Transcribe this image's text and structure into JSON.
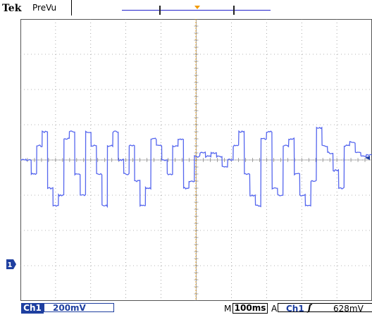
{
  "header": {
    "brand": "Tek",
    "mode": "PreVu"
  },
  "display": {
    "trace_color": "#5566ee",
    "grid_color": "#6f6f6f",
    "trigger_color": "#f29a00",
    "channel_marker": "1",
    "trace_levels_div": [
      0.0,
      0.4,
      -0.4,
      0.8,
      -0.8,
      1.3,
      -1.3
    ]
  },
  "status": {
    "channel": "Ch1",
    "volts_per_div": "200mV",
    "time_prefix": "M",
    "time_per_div": "100ms",
    "trigger_mode": "A",
    "trigger_source": "Ch1",
    "trigger_slope_icon": "rising-edge-icon",
    "trigger_slope_glyph": "ʃ",
    "trigger_level": "628mV"
  }
}
